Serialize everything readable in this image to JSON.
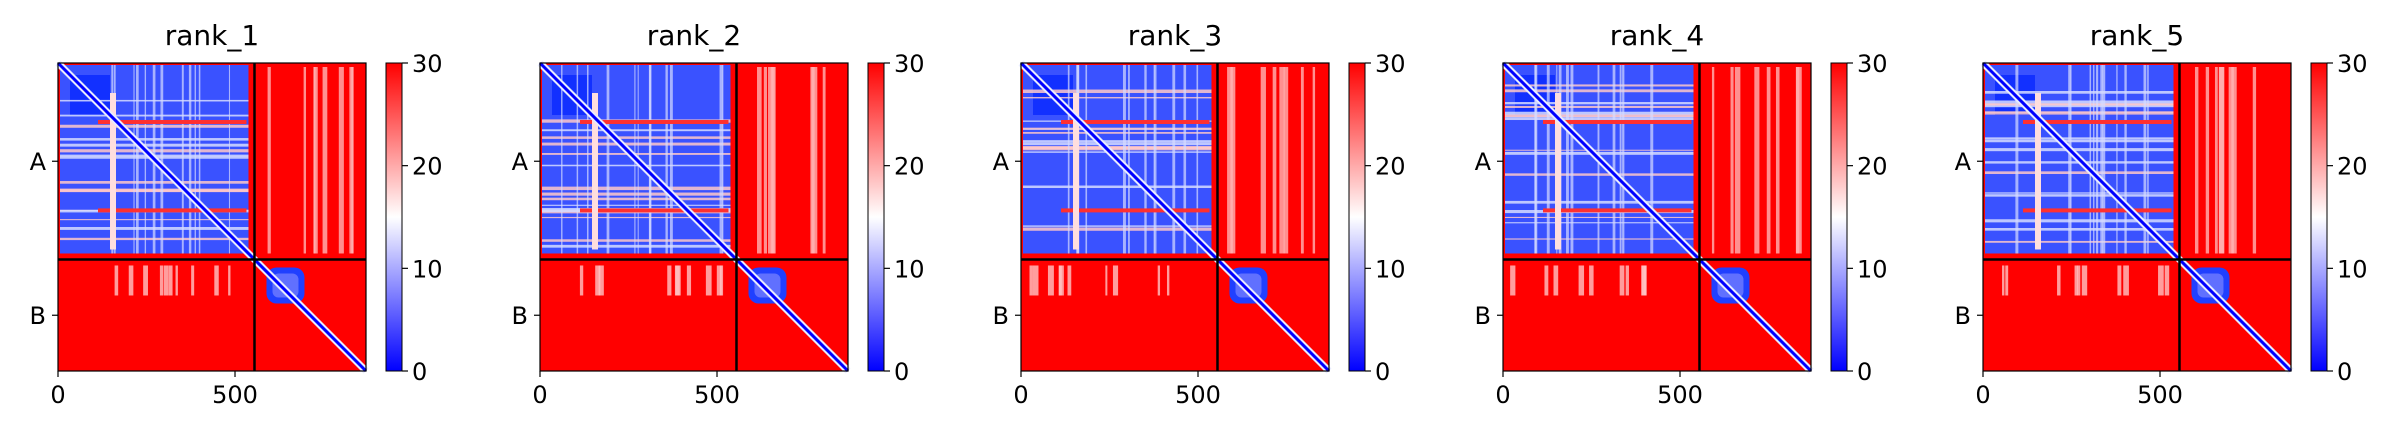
{
  "chart_data": [
    {
      "type": "heatmap",
      "title": "rank_1",
      "chains": [
        {
          "label": "A",
          "start": 0,
          "end": 555
        },
        {
          "label": "B",
          "start": 555,
          "end": 870
        }
      ],
      "xlim": [
        0,
        870
      ],
      "x_ticks": [
        0,
        500
      ],
      "colorbar": {
        "range": [
          0,
          30
        ],
        "ticks": [
          0,
          10,
          20,
          30
        ],
        "colormap": [
          "#0000ff",
          "#ffffff",
          "#ff0000"
        ]
      }
    },
    {
      "type": "heatmap",
      "title": "rank_2",
      "chains": [
        {
          "label": "A",
          "start": 0,
          "end": 555
        },
        {
          "label": "B",
          "start": 555,
          "end": 870
        }
      ],
      "xlim": [
        0,
        870
      ],
      "x_ticks": [
        0,
        500
      ],
      "colorbar": {
        "range": [
          0,
          30
        ],
        "ticks": [
          0,
          10,
          20,
          30
        ],
        "colormap": [
          "#0000ff",
          "#ffffff",
          "#ff0000"
        ]
      }
    },
    {
      "type": "heatmap",
      "title": "rank_3",
      "chains": [
        {
          "label": "A",
          "start": 0,
          "end": 555
        },
        {
          "label": "B",
          "start": 555,
          "end": 870
        }
      ],
      "xlim": [
        0,
        870
      ],
      "x_ticks": [
        0,
        500
      ],
      "colorbar": {
        "range": [
          0,
          30
        ],
        "ticks": [
          0,
          10,
          20,
          30
        ],
        "colormap": [
          "#0000ff",
          "#ffffff",
          "#ff0000"
        ]
      }
    },
    {
      "type": "heatmap",
      "title": "rank_4",
      "chains": [
        {
          "label": "A",
          "start": 0,
          "end": 555
        },
        {
          "label": "B",
          "start": 555,
          "end": 870
        }
      ],
      "xlim": [
        0,
        870
      ],
      "x_ticks": [
        0,
        500
      ],
      "colorbar": {
        "range": [
          0,
          30
        ],
        "ticks": [
          0,
          10,
          20,
          30
        ],
        "colormap": [
          "#0000ff",
          "#ffffff",
          "#ff0000"
        ]
      }
    },
    {
      "type": "heatmap",
      "title": "rank_5",
      "chains": [
        {
          "label": "A",
          "start": 0,
          "end": 555
        },
        {
          "label": "B",
          "start": 555,
          "end": 870
        }
      ],
      "xlim": [
        0,
        870
      ],
      "x_ticks": [
        0,
        500
      ],
      "colorbar": {
        "range": [
          0,
          30
        ],
        "ticks": [
          0,
          10,
          20,
          30
        ],
        "colormap": [
          "#0000ff",
          "#ffffff",
          "#ff0000"
        ]
      }
    }
  ]
}
